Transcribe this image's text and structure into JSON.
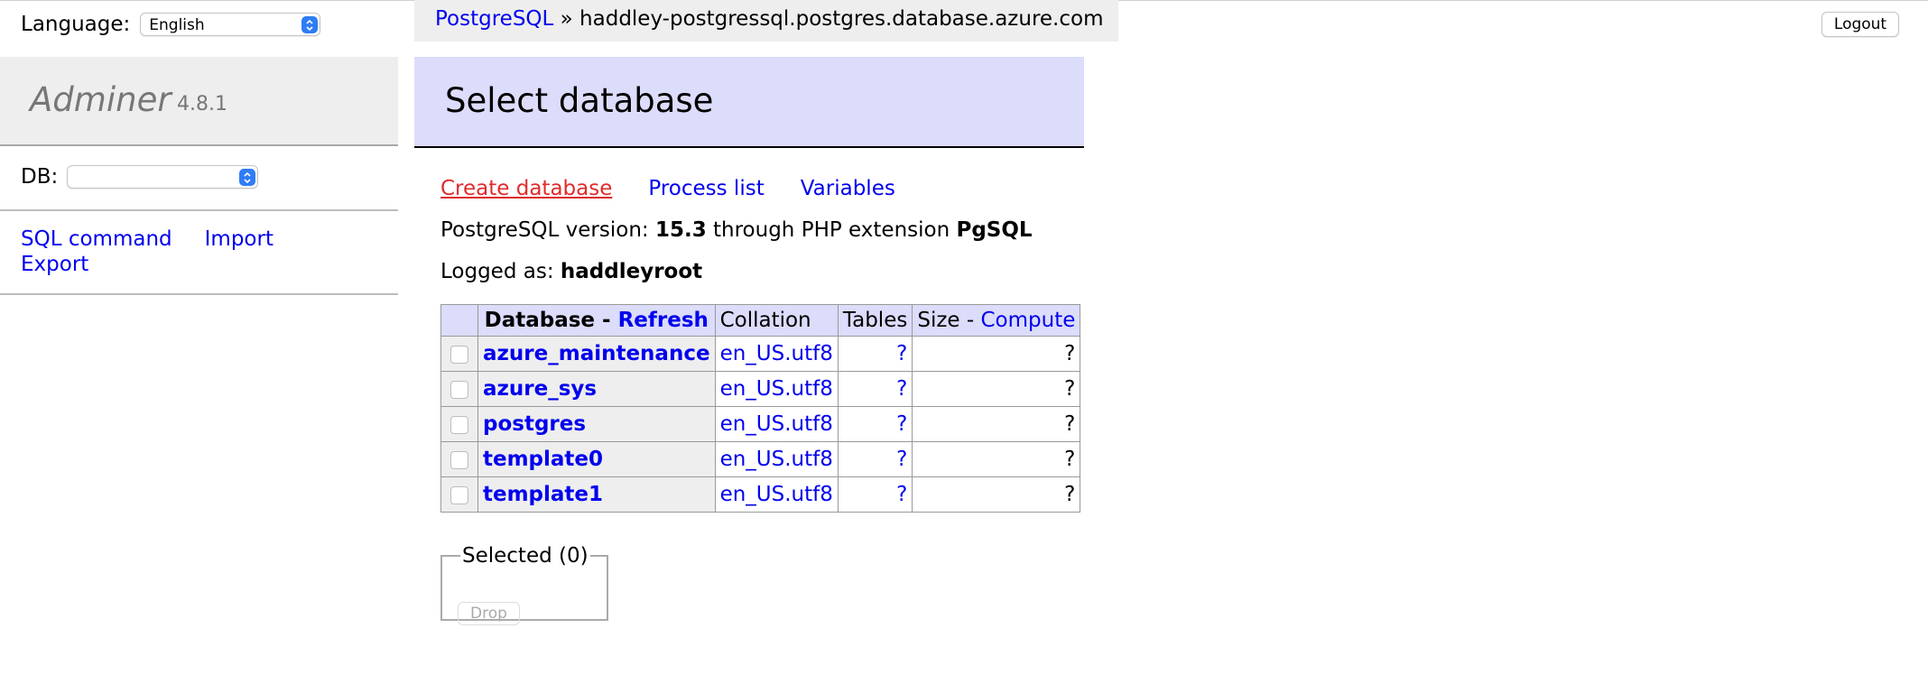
{
  "sidebar": {
    "language_label": "Language:",
    "language_value": "English",
    "brand_name": "Adminer",
    "brand_version": "4.8.1",
    "db_label": "DB:",
    "db_value": "",
    "links": {
      "sql_command": "SQL command",
      "import": "Import",
      "export": "Export"
    }
  },
  "breadcrumb": {
    "driver": "PostgreSQL",
    "separator": "»",
    "server": "haddley-postgressql.postgres.database.azure.com"
  },
  "logout_label": "Logout",
  "main": {
    "title": "Select database",
    "links": {
      "create_database": "Create database",
      "process_list": "Process list",
      "variables": "Variables"
    },
    "version_info": {
      "prefix": "PostgreSQL version:",
      "version": "15.3",
      "middle": "through PHP extension",
      "extension": "PgSQL"
    },
    "logged": {
      "prefix": "Logged as:",
      "user": "haddleyroot"
    },
    "table": {
      "headers": {
        "database": "Database",
        "dash": " - ",
        "refresh": "Refresh",
        "collation": "Collation",
        "tables": "Tables",
        "size": "Size",
        "compute": "Compute"
      },
      "rows": [
        {
          "name": "azure_maintenance",
          "collation": "en_US.utf8",
          "tables": "?",
          "size": "?"
        },
        {
          "name": "azure_sys",
          "collation": "en_US.utf8",
          "tables": "?",
          "size": "?"
        },
        {
          "name": "postgres",
          "collation": "en_US.utf8",
          "tables": "?",
          "size": "?"
        },
        {
          "name": "template0",
          "collation": "en_US.utf8",
          "tables": "?",
          "size": "?"
        },
        {
          "name": "template1",
          "collation": "en_US.utf8",
          "tables": "?",
          "size": "?"
        }
      ]
    },
    "selected": {
      "legend": "Selected (0)",
      "drop_label": "Drop"
    }
  },
  "colors": {
    "link": "#0000ee",
    "create_link": "#e02b2b",
    "heading_bg": "#dcdcfb",
    "sidebar_bg": "#eeeeee"
  }
}
